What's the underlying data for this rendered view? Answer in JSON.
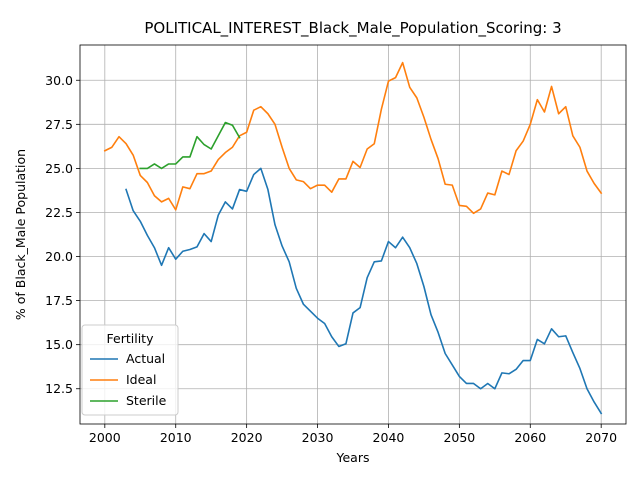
{
  "chart_data": {
    "type": "line",
    "title": "POLITICAL_INTEREST_Black_Male_Population_Scoring: 3",
    "xlabel": "Years",
    "ylabel": "% of Black_Male Population",
    "xlim": [
      1996.5,
      2073.5
    ],
    "ylim": [
      10.5,
      32.0
    ],
    "xticks": [
      2000,
      2010,
      2020,
      2030,
      2040,
      2050,
      2060,
      2070
    ],
    "yticks": [
      12.5,
      15.0,
      17.5,
      20.0,
      22.5,
      25.0,
      27.5,
      30.0
    ],
    "ytick_labels": [
      "12.5",
      "15.0",
      "17.5",
      "20.0",
      "22.5",
      "25.0",
      "27.5",
      "30.0"
    ],
    "grid": true,
    "legend": {
      "title": "Fertility",
      "placement": "bottom-left"
    },
    "series": [
      {
        "name": "Actual",
        "color": "#1f77b4",
        "x": [
          2003,
          2004,
          2005,
          2006,
          2007,
          2008,
          2009,
          2010,
          2011,
          2012,
          2013,
          2014,
          2015,
          2016,
          2017,
          2018,
          2019,
          2020,
          2021,
          2022,
          2023,
          2024,
          2025,
          2026,
          2027,
          2028,
          2029,
          2030,
          2031,
          2032,
          2033,
          2034,
          2035,
          2036,
          2037,
          2038,
          2039,
          2040,
          2041,
          2042,
          2043,
          2044,
          2045,
          2046,
          2047,
          2048,
          2049,
          2050,
          2051,
          2052,
          2053,
          2054,
          2055,
          2056,
          2057,
          2058,
          2059,
          2060,
          2061,
          2062,
          2063,
          2064,
          2065,
          2066,
          2067,
          2068,
          2069,
          2070
        ],
        "y": [
          23.8,
          22.6,
          22.0,
          21.2,
          20.5,
          19.5,
          20.5,
          19.85,
          20.3,
          20.4,
          20.55,
          21.3,
          20.85,
          22.35,
          23.1,
          22.7,
          23.8,
          23.7,
          24.65,
          25.0,
          23.8,
          21.8,
          20.6,
          19.7,
          18.2,
          17.3,
          16.9,
          16.5,
          16.2,
          15.45,
          14.9,
          15.05,
          16.8,
          17.1,
          18.8,
          19.7,
          19.75,
          20.85,
          20.5,
          21.1,
          20.5,
          19.6,
          18.3,
          16.7,
          15.7,
          14.5,
          13.85,
          13.2,
          12.8,
          12.8,
          12.5,
          12.8,
          12.5,
          13.4,
          13.35,
          13.6,
          14.1,
          14.1,
          15.3,
          15.05,
          15.9,
          15.45,
          15.5,
          14.55,
          13.65,
          12.5,
          11.75,
          11.1
        ]
      },
      {
        "name": "Ideal",
        "color": "#ff7f0e",
        "x": [
          2000,
          2001,
          2002,
          2003,
          2004,
          2005,
          2006,
          2007,
          2008,
          2009,
          2010,
          2011,
          2012,
          2013,
          2014,
          2015,
          2016,
          2017,
          2018,
          2019,
          2020,
          2021,
          2022,
          2023,
          2024,
          2025,
          2026,
          2027,
          2028,
          2029,
          2030,
          2031,
          2032,
          2033,
          2034,
          2035,
          2036,
          2037,
          2038,
          2039,
          2040,
          2041,
          2042,
          2043,
          2044,
          2045,
          2046,
          2047,
          2048,
          2049,
          2050,
          2051,
          2052,
          2053,
          2054,
          2055,
          2056,
          2057,
          2058,
          2059,
          2060,
          2061,
          2062,
          2063,
          2064,
          2065,
          2066,
          2067,
          2068,
          2069,
          2070
        ],
        "y": [
          26.0,
          26.2,
          26.8,
          26.4,
          25.75,
          24.6,
          24.2,
          23.45,
          23.1,
          23.3,
          22.65,
          23.95,
          23.85,
          24.7,
          24.7,
          24.85,
          25.5,
          25.9,
          26.2,
          26.85,
          27.05,
          28.3,
          28.5,
          28.1,
          27.5,
          26.2,
          25.0,
          24.35,
          24.25,
          23.85,
          24.05,
          24.05,
          23.65,
          24.4,
          24.4,
          25.4,
          25.05,
          26.1,
          26.4,
          28.35,
          29.95,
          30.15,
          31.0,
          29.6,
          29.0,
          27.9,
          26.65,
          25.55,
          24.1,
          24.05,
          22.9,
          22.85,
          22.45,
          22.7,
          23.6,
          23.5,
          24.85,
          24.65,
          26.0,
          26.55,
          27.5,
          28.9,
          28.2,
          29.65,
          28.1,
          28.5,
          26.85,
          26.2,
          24.85,
          24.15,
          23.6
        ]
      },
      {
        "name": "Sterile",
        "color": "#2ca02c",
        "x": [
          2005,
          2006,
          2007,
          2008,
          2009,
          2010,
          2011,
          2012,
          2013,
          2014,
          2015,
          2016,
          2017,
          2018,
          2019
        ],
        "y": [
          25.0,
          25.0,
          25.25,
          25.0,
          25.25,
          25.25,
          25.65,
          25.65,
          26.8,
          26.35,
          26.1,
          26.85,
          27.6,
          27.45,
          26.75
        ]
      }
    ]
  }
}
